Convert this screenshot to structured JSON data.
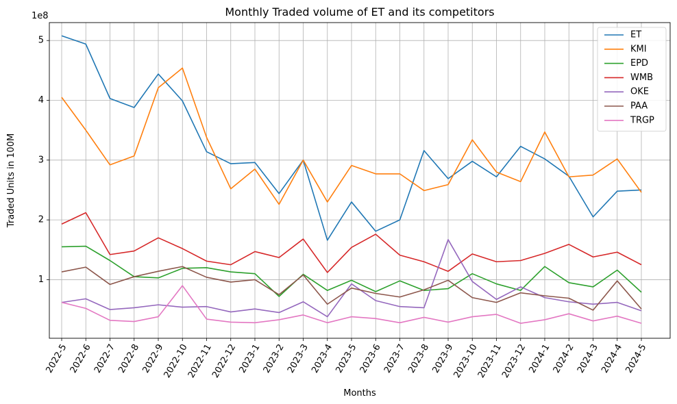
{
  "chart_data": {
    "type": "line",
    "title": "Monthly Traded volume of ET and its competitors",
    "xlabel": "Months",
    "ylabel": "Traded Units in 100M",
    "y_offset_label": "1e8",
    "y_scale": 100000000,
    "ylim": [
      0.02,
      5.3
    ],
    "yticks": [
      1,
      2,
      3,
      4,
      5
    ],
    "yticklabels": [
      "1",
      "2",
      "3",
      "4",
      "5"
    ],
    "grid": true,
    "legend_position": "top-right",
    "categories": [
      "2022-5",
      "2022-6",
      "2022-7",
      "2022-8",
      "2022-9",
      "2022-10",
      "2022-11",
      "2022-12",
      "2023-1",
      "2023-2",
      "2023-3",
      "2023-4",
      "2023-5",
      "2023-6",
      "2023-7",
      "2023-8",
      "2023-9",
      "2023-10",
      "2023-11",
      "2023-12",
      "2024-1",
      "2024-2",
      "2024-3",
      "2024-4",
      "2024-5"
    ],
    "series": [
      {
        "name": "ET",
        "color": "#1f77b4",
        "values": [
          5.08,
          4.94,
          4.03,
          3.88,
          4.44,
          3.99,
          3.14,
          2.94,
          2.96,
          2.44,
          3.0,
          1.66,
          2.3,
          1.81,
          2.0,
          3.16,
          2.69,
          2.98,
          2.72,
          3.23,
          3.02,
          2.73,
          2.05,
          2.48,
          2.5
        ]
      },
      {
        "name": "KMI",
        "color": "#ff7f0e",
        "values": [
          4.05,
          3.5,
          2.92,
          3.07,
          4.21,
          4.54,
          3.38,
          2.52,
          2.85,
          2.26,
          3.0,
          2.3,
          2.91,
          2.77,
          2.77,
          2.49,
          2.59,
          3.34,
          2.8,
          2.64,
          3.47,
          2.72,
          2.75,
          3.02,
          2.46
        ]
      },
      {
        "name": "EPD",
        "color": "#2ca02c",
        "values": [
          1.55,
          1.56,
          1.32,
          1.05,
          1.03,
          1.19,
          1.2,
          1.13,
          1.1,
          0.72,
          1.09,
          0.82,
          0.99,
          0.8,
          0.98,
          0.82,
          0.85,
          1.1,
          0.93,
          0.82,
          1.22,
          0.95,
          0.88,
          1.16,
          0.79
        ]
      },
      {
        "name": "WMB",
        "color": "#d62728",
        "values": [
          1.93,
          2.12,
          1.42,
          1.48,
          1.7,
          1.52,
          1.31,
          1.25,
          1.47,
          1.37,
          1.68,
          1.12,
          1.54,
          1.76,
          1.41,
          1.3,
          1.14,
          1.43,
          1.3,
          1.32,
          1.44,
          1.59,
          1.38,
          1.46,
          1.25
        ]
      },
      {
        "name": "OKE",
        "color": "#9467bd",
        "values": [
          0.62,
          0.68,
          0.5,
          0.53,
          0.58,
          0.54,
          0.55,
          0.46,
          0.51,
          0.45,
          0.63,
          0.38,
          0.93,
          0.65,
          0.55,
          0.53,
          1.67,
          0.97,
          0.67,
          0.88,
          0.7,
          0.63,
          0.59,
          0.62,
          0.48
        ]
      },
      {
        "name": "PAA",
        "color": "#8c564b",
        "values": [
          1.13,
          1.21,
          0.92,
          1.05,
          1.14,
          1.22,
          1.04,
          0.96,
          1.0,
          0.75,
          1.08,
          0.59,
          0.86,
          0.77,
          0.71,
          0.83,
          0.99,
          0.7,
          0.62,
          0.78,
          0.73,
          0.69,
          0.49,
          0.98,
          0.51
        ]
      },
      {
        "name": "TRGP",
        "color": "#e377c2",
        "values": [
          0.62,
          0.52,
          0.32,
          0.3,
          0.38,
          0.9,
          0.34,
          0.29,
          0.28,
          0.33,
          0.41,
          0.28,
          0.38,
          0.35,
          0.28,
          0.37,
          0.29,
          0.38,
          0.42,
          0.27,
          0.33,
          0.43,
          0.31,
          0.39,
          0.27
        ]
      }
    ]
  }
}
